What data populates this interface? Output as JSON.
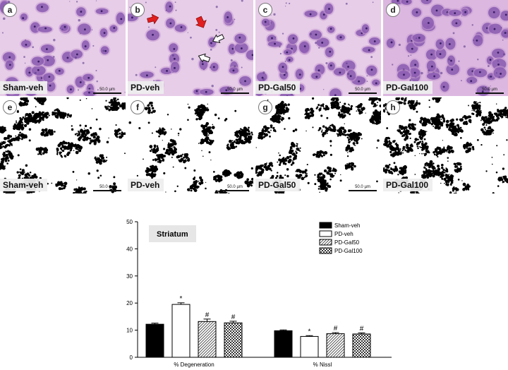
{
  "panels": [
    {
      "letter": "a",
      "label": "Sham-veh",
      "scale": "50.0 µm"
    },
    {
      "letter": "b",
      "label": "PD-veh",
      "scale": "50.0 µm"
    },
    {
      "letter": "c",
      "label": "PD-Gal50",
      "scale": "50.0 µm"
    },
    {
      "letter": "d",
      "label": "PD-Gal100",
      "scale": "50.0 µm"
    },
    {
      "letter": "e",
      "label": "Sham-veh",
      "scale": "50.0 µm"
    },
    {
      "letter": "f",
      "label": "PD-veh",
      "scale": "50.0 µm"
    },
    {
      "letter": "g",
      "label": "PD-Gal50",
      "scale": "50.0 µm"
    },
    {
      "letter": "h",
      "label": "PD-Gal100",
      "scale": "50.0 µm"
    }
  ],
  "chart_data": {
    "type": "bar",
    "title": "Striatum",
    "categories": [
      "% Degeneration",
      "% Nissl"
    ],
    "ylim": [
      0,
      50
    ],
    "yticks": [
      "0",
      "10",
      "20",
      "30",
      "40",
      "50"
    ],
    "legend_position": "top-right",
    "series": [
      {
        "name": "Sham-veh",
        "values": [
          12.2,
          9.8
        ],
        "errors": [
          0.4,
          0.3
        ],
        "marks": [
          "",
          ""
        ]
      },
      {
        "name": "PD-veh",
        "values": [
          19.5,
          7.7
        ],
        "errors": [
          0.6,
          0.3
        ],
        "marks": [
          "*",
          "*"
        ]
      },
      {
        "name": "PD-Gal50",
        "values": [
          13.2,
          8.7
        ],
        "errors": [
          0.9,
          0.4
        ],
        "marks": [
          "#",
          "#"
        ]
      },
      {
        "name": "PD-Gal100",
        "values": [
          12.7,
          8.6
        ],
        "errors": [
          0.6,
          0.4
        ],
        "marks": [
          "#",
          "#"
        ]
      }
    ]
  }
}
